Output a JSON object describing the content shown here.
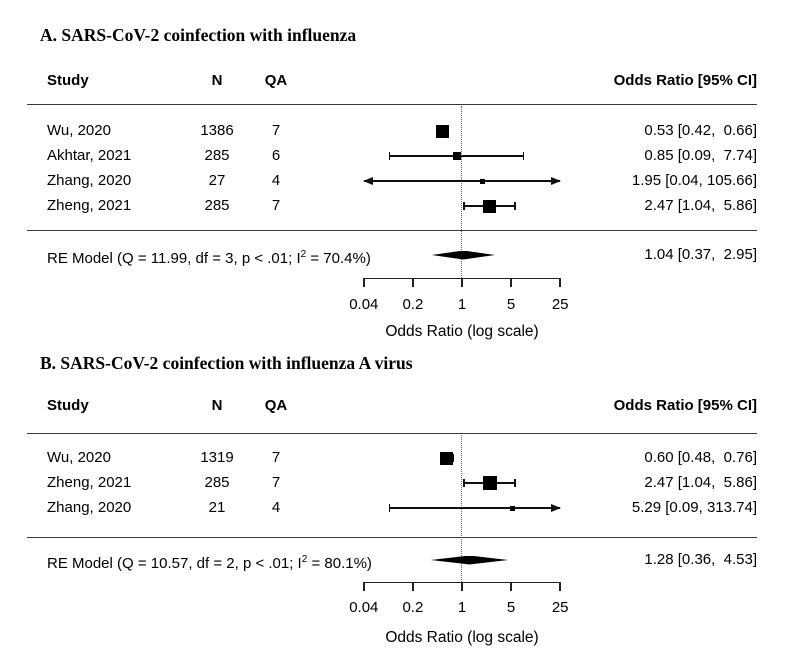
{
  "figure": {
    "background": "#ffffff",
    "text_color": "#000000",
    "line_color": "#3a3a3a"
  },
  "chart_data": [
    {
      "type": "forest",
      "title": "A. SARS-CoV-2 coinfection with influenza",
      "columns": {
        "study": "Study",
        "n": "N",
        "qa": "QA",
        "or": "Odds Ratio [95% CI]"
      },
      "axis": {
        "scale": "log",
        "ticks": [
          0.04,
          0.2,
          1,
          5,
          25
        ],
        "tick_labels": [
          "0.04",
          "0.2",
          "1",
          "5",
          "25"
        ],
        "min": 0.04,
        "max": 25,
        "reference_line": 1,
        "label": "Odds Ratio (log scale)"
      },
      "studies": [
        {
          "study": "Wu, 2020",
          "n": "1386",
          "qa": "7",
          "or": 0.53,
          "ci_low": 0.42,
          "ci_high": 0.66,
          "label": "0.53 [0.42,  0.66]",
          "marker_size": 13
        },
        {
          "study": "Akhtar, 2021",
          "n": "285",
          "qa": "6",
          "or": 0.85,
          "ci_low": 0.09,
          "ci_high": 7.74,
          "label": "0.85 [0.09,  7.74]",
          "marker_size": 8
        },
        {
          "study": "Zhang, 2020",
          "n": "27",
          "qa": "4",
          "or": 1.95,
          "ci_low": 0.04,
          "ci_high": 105.66,
          "label": "1.95 [0.04, 105.66]",
          "marker_size": 5
        },
        {
          "study": "Zheng, 2021",
          "n": "285",
          "qa": "7",
          "or": 2.47,
          "ci_low": 1.04,
          "ci_high": 5.86,
          "label": "2.47 [1.04,  5.86]",
          "marker_size": 13
        }
      ],
      "re_model": {
        "text_prefix": "RE Model (Q = 11.99, df = 3, p < .01; I",
        "text_sup": "2",
        "text_suffix": " = 70.4%)",
        "or": 1.04,
        "ci_low": 0.37,
        "ci_high": 2.95,
        "label": "1.04 [0.37,  2.95]"
      }
    },
    {
      "type": "forest",
      "title": "B. SARS-CoV-2 coinfection with influenza A virus",
      "columns": {
        "study": "Study",
        "n": "N",
        "qa": "QA",
        "or": "Odds Ratio [95% CI]"
      },
      "axis": {
        "scale": "log",
        "ticks": [
          0.04,
          0.2,
          1,
          5,
          25
        ],
        "tick_labels": [
          "0.04",
          "0.2",
          "1",
          "5",
          "25"
        ],
        "min": 0.04,
        "max": 25,
        "reference_line": 1,
        "label": "Odds Ratio (log scale)"
      },
      "studies": [
        {
          "study": "Wu, 2020",
          "n": "1319",
          "qa": "7",
          "or": 0.6,
          "ci_low": 0.48,
          "ci_high": 0.76,
          "label": "0.60 [0.48,  0.76]",
          "marker_size": 13
        },
        {
          "study": "Zheng, 2021",
          "n": "285",
          "qa": "7",
          "or": 2.47,
          "ci_low": 1.04,
          "ci_high": 5.86,
          "label": "2.47 [1.04,  5.86]",
          "marker_size": 14
        },
        {
          "study": "Zhang, 2020",
          "n": "21",
          "qa": "4",
          "or": 5.29,
          "ci_low": 0.09,
          "ci_high": 313.74,
          "label": "5.29 [0.09, 313.74]",
          "marker_size": 5
        }
      ],
      "re_model": {
        "text_prefix": "RE Model (Q = 10.57, df = 2, p < .01; I",
        "text_sup": "2",
        "text_suffix": " = 80.1%)",
        "or": 1.28,
        "ci_low": 0.36,
        "ci_high": 4.53,
        "label": "1.28 [0.36,  4.53]"
      }
    }
  ]
}
